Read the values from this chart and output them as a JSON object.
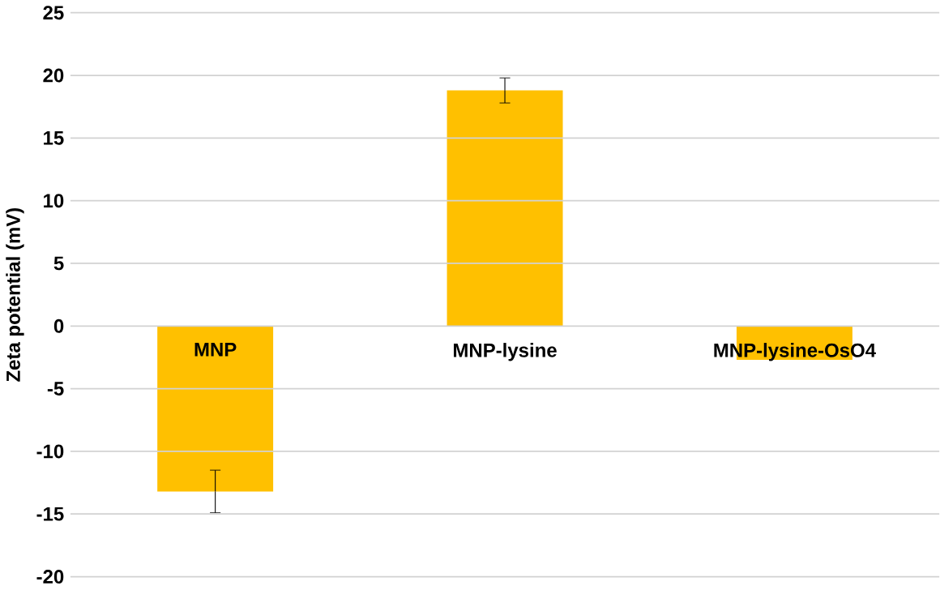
{
  "chart_data": {
    "type": "bar",
    "ylabel": "Zeta potential (mV)",
    "categories": [
      "MNP",
      "MNP-lysine",
      "MNP-lysine-OsO4"
    ],
    "values": [
      -13.2,
      18.8,
      -2.7
    ],
    "errors": [
      1.7,
      1.0,
      null
    ],
    "color": "#ffc000",
    "ylim": [
      -20,
      25
    ],
    "yticks": [
      -20,
      -15,
      -10,
      -5,
      0,
      5,
      10,
      15,
      20,
      25
    ],
    "grid": "y"
  }
}
